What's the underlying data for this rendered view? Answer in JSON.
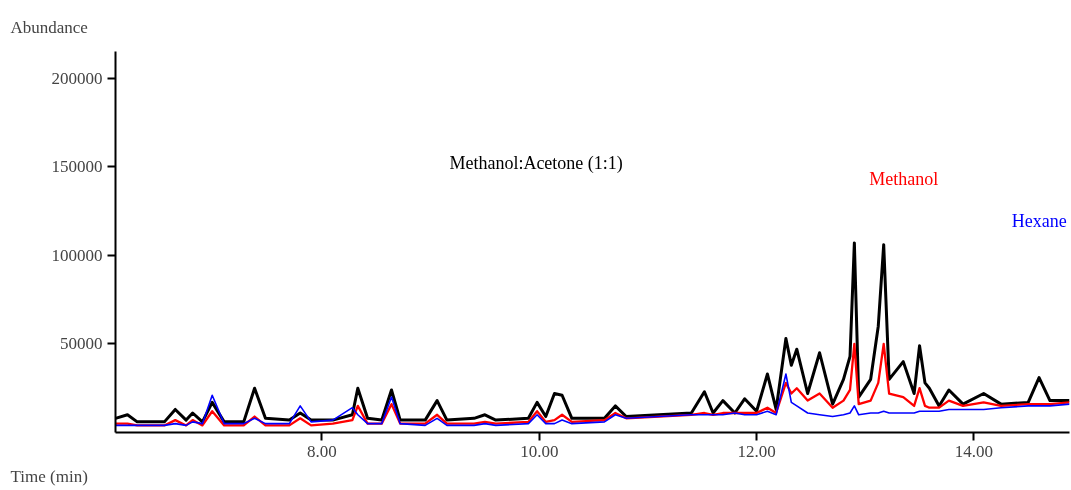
{
  "chart_data": {
    "type": "line",
    "xlabel": "Time (min)",
    "ylabel": "Abundance",
    "x": [
      6.1,
      6.21,
      6.3,
      6.55,
      6.65,
      6.75,
      6.81,
      6.9,
      6.99,
      7.1,
      7.28,
      7.38,
      7.48,
      7.7,
      7.8,
      7.9,
      8.1,
      8.28,
      8.33,
      8.42,
      8.55,
      8.64,
      8.72,
      8.95,
      9.06,
      9.15,
      9.4,
      9.5,
      9.6,
      9.9,
      9.98,
      10.06,
      10.14,
      10.21,
      10.3,
      10.6,
      10.7,
      10.8,
      11.4,
      11.52,
      11.6,
      11.69,
      11.8,
      11.89,
      12.0,
      12.1,
      12.18,
      12.27,
      12.32,
      12.37,
      12.47,
      12.58,
      12.7,
      12.8,
      12.86,
      12.9,
      12.94,
      13.05,
      13.12,
      13.17,
      13.22,
      13.35,
      13.45,
      13.5,
      13.55,
      13.59,
      13.68,
      13.77,
      13.9,
      14.09,
      14.25,
      14.5,
      14.6,
      14.7,
      14.88
    ],
    "series": [
      {
        "name": "Methanol:Acetone (1:1)",
        "color": "#000000",
        "values": [
          8000,
          10000,
          6000,
          6000,
          13000,
          7000,
          11000,
          6000,
          17000,
          6000,
          6000,
          25000,
          8000,
          7000,
          11000,
          7000,
          7000,
          10000,
          25000,
          8000,
          7000,
          24000,
          7000,
          7000,
          18000,
          7000,
          8000,
          10000,
          7000,
          8000,
          17000,
          9000,
          22000,
          21000,
          8000,
          8000,
          15000,
          9000,
          11000,
          23000,
          11000,
          18000,
          11000,
          19000,
          12000,
          33000,
          13000,
          53000,
          38000,
          47000,
          22000,
          45000,
          16000,
          30000,
          43000,
          107000,
          20000,
          30000,
          60000,
          106000,
          30000,
          40000,
          22000,
          49000,
          28000,
          25000,
          15000,
          24000,
          16000,
          22000,
          16000,
          17000,
          31000,
          18000,
          18000
        ]
      },
      {
        "name": "Methanol",
        "color": "#ff0000",
        "values": [
          5000,
          5000,
          4000,
          4000,
          7000,
          4000,
          7000,
          4000,
          12000,
          4000,
          4000,
          9000,
          4000,
          4000,
          8000,
          4000,
          5000,
          7000,
          15000,
          5000,
          5000,
          16000,
          5000,
          5000,
          10000,
          5000,
          5000,
          6000,
          5000,
          6000,
          12000,
          6000,
          7000,
          10000,
          6000,
          7000,
          11000,
          8000,
          10000,
          11000,
          10000,
          11000,
          11000,
          11000,
          11000,
          14000,
          11000,
          28000,
          22000,
          25000,
          18000,
          22000,
          14000,
          18000,
          24000,
          50000,
          16000,
          18000,
          28000,
          50000,
          22000,
          20000,
          15000,
          25000,
          15000,
          14000,
          14000,
          18000,
          15000,
          17000,
          15000,
          16000,
          16000,
          16000,
          17000
        ]
      },
      {
        "name": "Hexane",
        "color": "#0000ff",
        "values": [
          4000,
          4000,
          4000,
          4000,
          5000,
          4000,
          6000,
          5000,
          21000,
          5000,
          5000,
          8000,
          5000,
          5000,
          15000,
          6000,
          7000,
          14000,
          10000,
          5000,
          5000,
          20000,
          5000,
          4000,
          8000,
          4000,
          4000,
          5000,
          4000,
          5000,
          10000,
          5000,
          5000,
          7000,
          5000,
          6000,
          10000,
          8000,
          10000,
          10000,
          10000,
          10000,
          11000,
          10000,
          10000,
          12000,
          10000,
          33000,
          17000,
          15000,
          11000,
          10000,
          9000,
          10000,
          11000,
          15000,
          10000,
          11000,
          11000,
          12000,
          11000,
          11000,
          11000,
          12000,
          12000,
          12000,
          12000,
          13000,
          13000,
          13000,
          14000,
          15000,
          15000,
          15000,
          16000
        ]
      }
    ],
    "xlim": [
      6.1,
      14.88
    ],
    "ylim": [
      0,
      215000
    ],
    "xticks": [
      {
        "value": 8,
        "label": "8.00"
      },
      {
        "value": 10,
        "label": "10.00"
      },
      {
        "value": 12,
        "label": "12.00"
      },
      {
        "value": 14,
        "label": "14.00"
      }
    ],
    "yticks": [
      50000,
      100000,
      150000,
      200000
    ],
    "grid": false,
    "legend": false,
    "marker": "none",
    "line_style": "solid"
  }
}
